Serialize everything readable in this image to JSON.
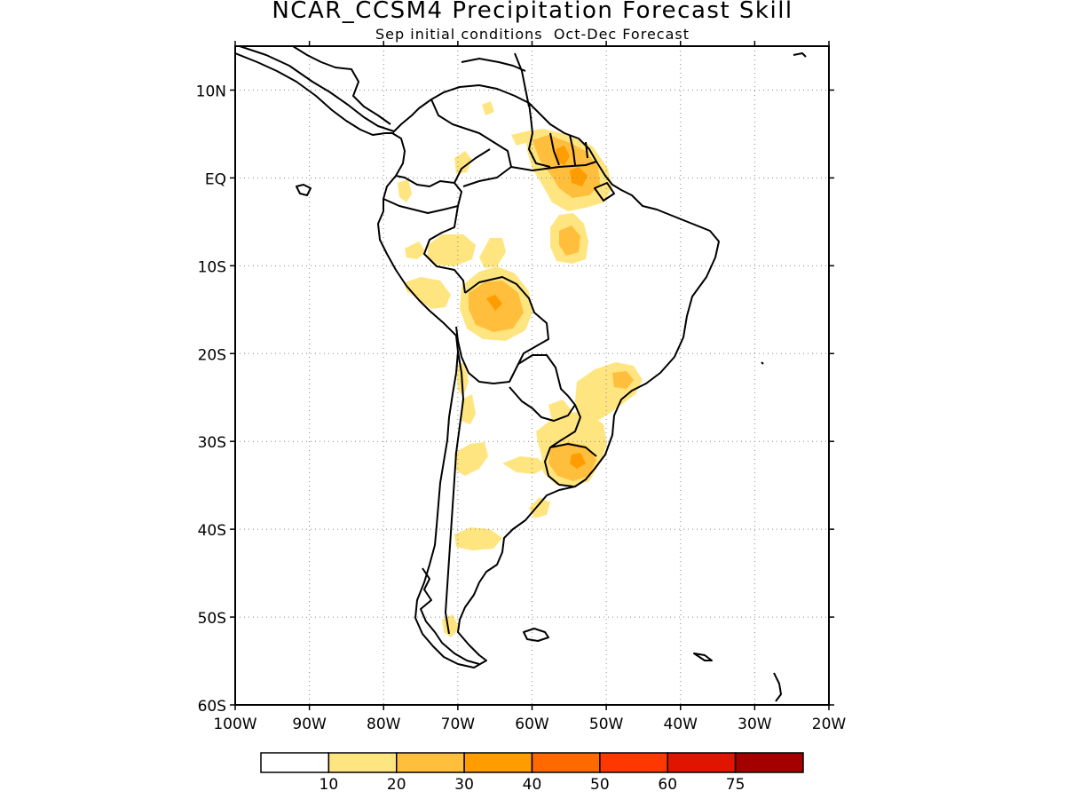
{
  "title": "NCAR_CCSM4 Precipitation Forecast Skill",
  "subtitle": "Sep initial conditions  Oct-Dec Forecast",
  "map": {
    "lon_range": [
      -100,
      -20
    ],
    "lat_range": [
      -60,
      15
    ],
    "lat_labels": [
      "10N",
      "EQ",
      "10S",
      "20S",
      "30S",
      "40S",
      "50S",
      "60S"
    ],
    "lon_labels": [
      "100W",
      "90W",
      "80W",
      "70W",
      "60W",
      "50W",
      "40W",
      "30W",
      "20W"
    ],
    "grid": true
  },
  "colorbar": {
    "colors": [
      "#ffffff",
      "#ffe57f",
      "#ffbe3c",
      "#ff9c00",
      "#ff6a00",
      "#ff3700",
      "#e11400",
      "#a50000"
    ],
    "labels": [
      "10",
      "20",
      "30",
      "40",
      "50",
      "60",
      "75"
    ]
  },
  "colors": {
    "level1": "#ffe57f",
    "level2": "#ffbe3c",
    "level3": "#ff9c00"
  }
}
